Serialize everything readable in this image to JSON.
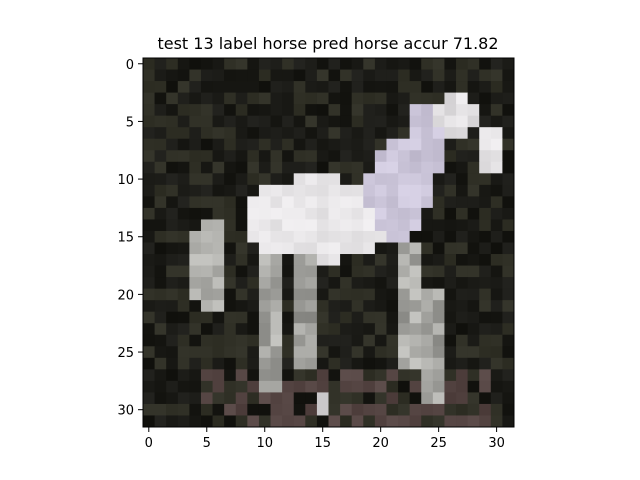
{
  "figure": {
    "title": "test 13 label horse pred horse accur 71.82"
  },
  "image": {
    "grid_rows": 32,
    "grid_cols": 32,
    "description_subject": "white horse on dark background",
    "x_ticks": [
      "0",
      "5",
      "10",
      "15",
      "20",
      "25",
      "30"
    ],
    "y_ticks": [
      "0",
      "5",
      "10",
      "15",
      "20",
      "25",
      "30"
    ],
    "tick_values": [
      0,
      5,
      10,
      15,
      20,
      25,
      30
    ]
  },
  "colors": {
    "background": "#ffffff",
    "axis": "#000000",
    "image_dark": "#141410",
    "image_mid": "#3a3a30",
    "horse_white": "#f2f0f2",
    "horse_lavender": "#d8d2e6",
    "horse_gray": "#9c9c98",
    "ground_brown": "#4a3a38"
  }
}
